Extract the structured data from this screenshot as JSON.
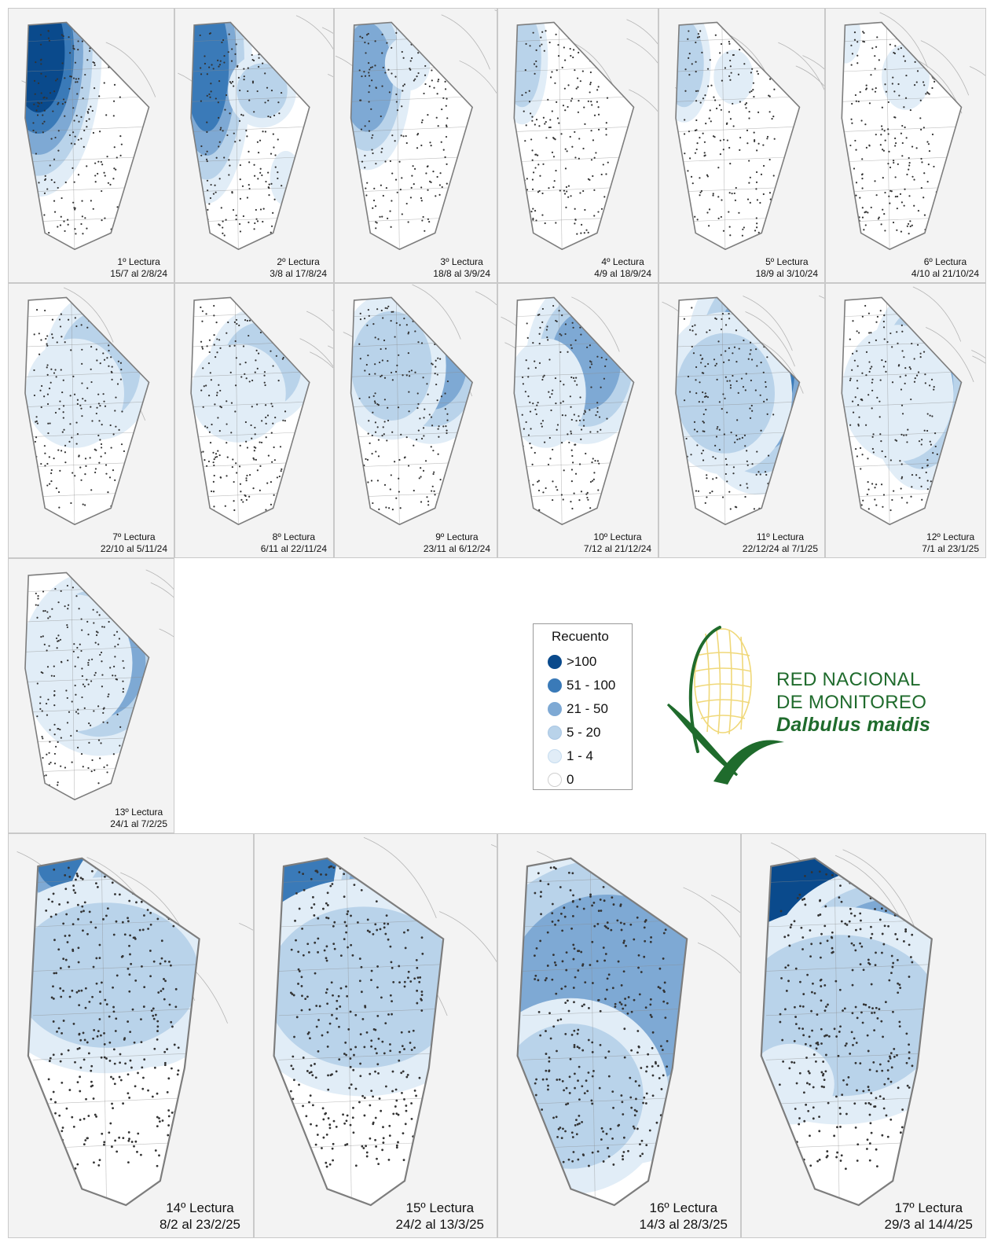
{
  "panels": [
    {
      "title": "1º Lectura",
      "dates": "15/7 al 2/8/24"
    },
    {
      "title": "2º Lectura",
      "dates": "3/8 al 17/8/24"
    },
    {
      "title": "3º Lectura",
      "dates": "18/8 al 3/9/24"
    },
    {
      "title": "4º Lectura",
      "dates": "4/9 al 18/9/24"
    },
    {
      "title": "5º Lectura",
      "dates": "18/9 al 3/10/24"
    },
    {
      "title": "6º Lectura",
      "dates": "4/10 al 21/10/24"
    },
    {
      "title": "7º Lectura",
      "dates": "22/10 al 5/11/24"
    },
    {
      "title": "8º Lectura",
      "dates": "6/11 al 22/11/24"
    },
    {
      "title": "9º Lectura",
      "dates": "23/11 al 6/12/24"
    },
    {
      "title": "10º Lectura",
      "dates": "7/12 al 21/12/24"
    },
    {
      "title": "11º Lectura",
      "dates": "22/12/24 al 7/1/25"
    },
    {
      "title": "12º Lectura",
      "dates": "7/1 al 23/1/25"
    },
    {
      "title": "13º Lectura",
      "dates": "24/1 al 7/2/25"
    },
    {
      "title": "14º Lectura",
      "dates": "8/2 al 23/2/25"
    },
    {
      "title": "15º Lectura",
      "dates": "24/2 al 13/3/25"
    },
    {
      "title": "16º Lectura",
      "dates": "14/3 al 28/3/25"
    },
    {
      "title": "17º Lectura",
      "dates": "29/3 al 14/4/25"
    }
  ],
  "legend": {
    "title": "Recuento",
    "items": [
      {
        "label": ">100",
        "color": "#0a4a8c"
      },
      {
        "label": "51 - 100",
        "color": "#3a7ab8"
      },
      {
        "label": "21 - 50",
        "color": "#7ea9d4"
      },
      {
        "label": "5 - 20",
        "color": "#b9d3ea"
      },
      {
        "label": "1 - 4",
        "color": "#e1edf7"
      },
      {
        "label": "0",
        "color": "#ffffff"
      }
    ]
  },
  "brand": {
    "line1": "RED NACIONAL",
    "line2": "DE MONITOREO",
    "line3": "Dalbulus maidis",
    "color": "#1f6b2c"
  }
}
